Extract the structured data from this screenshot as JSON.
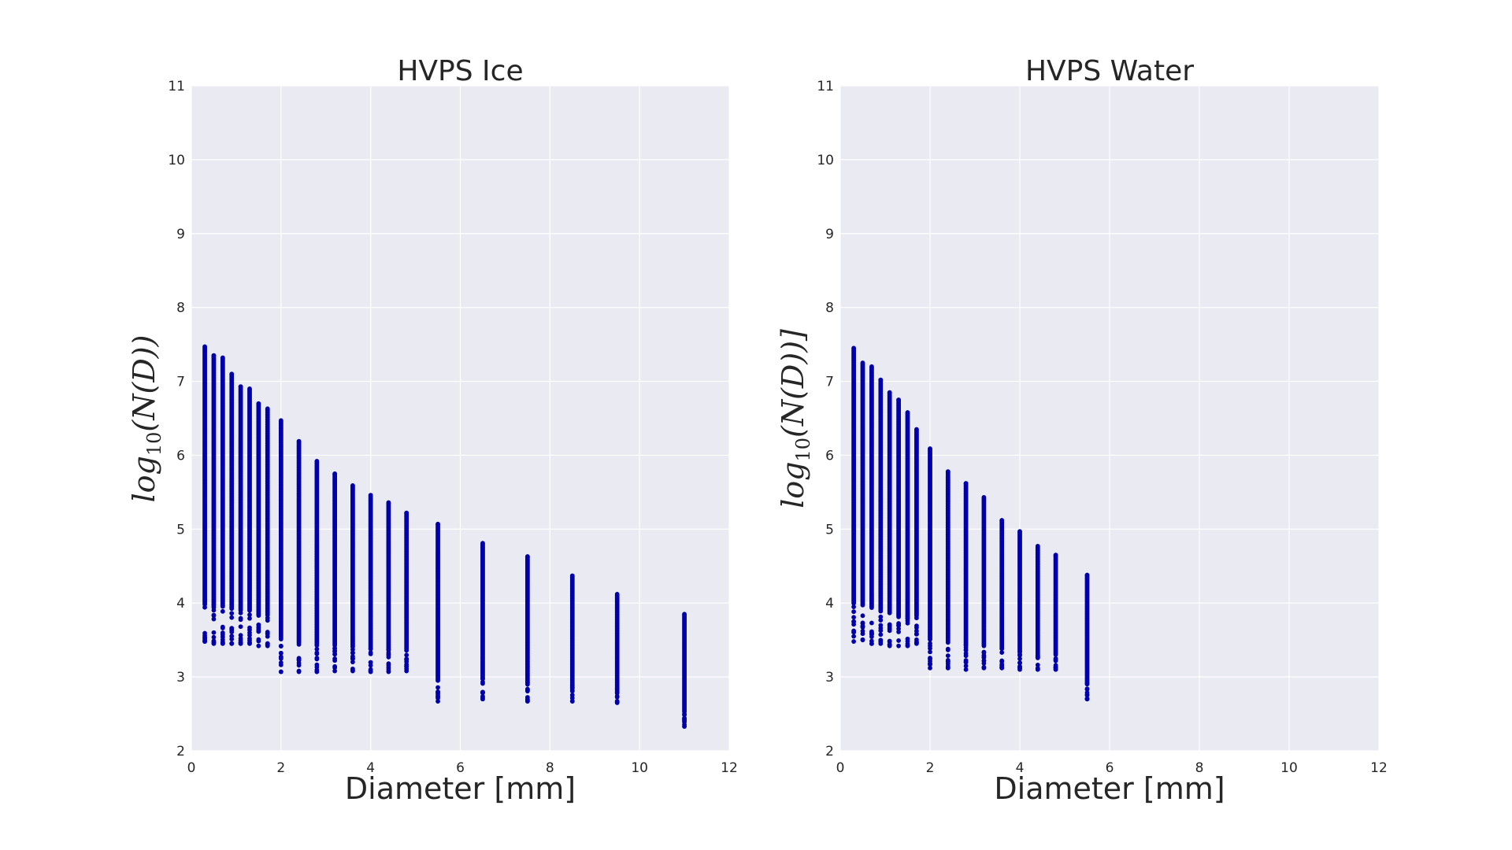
{
  "chart_data": [
    {
      "type": "scatter",
      "title": "HVPS Ice",
      "xlabel": "Diameter [mm]",
      "ylabel": "log10(N(D))",
      "ylabel_parts": {
        "pre": "log",
        "sub": "10",
        "post": "(N(D))"
      },
      "xlim": [
        0,
        12
      ],
      "ylim": [
        2,
        11
      ],
      "xticks": [
        "0",
        "2",
        "4",
        "6",
        "8",
        "10",
        "12"
      ],
      "yticks": [
        "2",
        "3",
        "4",
        "5",
        "6",
        "7",
        "8",
        "9",
        "10",
        "11"
      ],
      "grid": true,
      "color": "#0000aa",
      "columns": [
        {
          "x": 0.3,
          "ymin": 3.48,
          "ymax": 7.47
        },
        {
          "x": 0.5,
          "ymin": 3.45,
          "ymax": 7.35
        },
        {
          "x": 0.7,
          "ymin": 3.45,
          "ymax": 7.32
        },
        {
          "x": 0.9,
          "ymin": 3.45,
          "ymax": 7.1
        },
        {
          "x": 1.1,
          "ymin": 3.45,
          "ymax": 6.93
        },
        {
          "x": 1.3,
          "ymin": 3.45,
          "ymax": 6.9
        },
        {
          "x": 1.5,
          "ymin": 3.42,
          "ymax": 6.7
        },
        {
          "x": 1.7,
          "ymin": 3.42,
          "ymax": 6.63
        },
        {
          "x": 2.0,
          "ymin": 3.07,
          "ymax": 6.47
        },
        {
          "x": 2.4,
          "ymin": 3.07,
          "ymax": 6.19
        },
        {
          "x": 2.8,
          "ymin": 3.07,
          "ymax": 5.92
        },
        {
          "x": 3.2,
          "ymin": 3.08,
          "ymax": 5.75
        },
        {
          "x": 3.6,
          "ymin": 3.08,
          "ymax": 5.59
        },
        {
          "x": 4.0,
          "ymin": 3.07,
          "ymax": 5.46
        },
        {
          "x": 4.4,
          "ymin": 3.07,
          "ymax": 5.36
        },
        {
          "x": 4.8,
          "ymin": 3.08,
          "ymax": 5.22
        },
        {
          "x": 5.5,
          "ymin": 2.67,
          "ymax": 5.07
        },
        {
          "x": 6.5,
          "ymin": 2.7,
          "ymax": 4.81
        },
        {
          "x": 7.5,
          "ymin": 2.67,
          "ymax": 4.63
        },
        {
          "x": 8.5,
          "ymin": 2.67,
          "ymax": 4.37
        },
        {
          "x": 9.5,
          "ymin": 2.65,
          "ymax": 4.12
        },
        {
          "x": 11.0,
          "ymin": 2.33,
          "ymax": 3.85
        }
      ]
    },
    {
      "type": "scatter",
      "title": "HVPS Water",
      "xlabel": "Diameter [mm]",
      "ylabel": "log10(N(D))]",
      "ylabel_parts": {
        "pre": "log",
        "sub": "10",
        "post": "(N(D))]"
      },
      "xlim": [
        0,
        12
      ],
      "ylim": [
        2,
        11
      ],
      "xticks": [
        "0",
        "2",
        "4",
        "6",
        "8",
        "10",
        "12"
      ],
      "yticks": [
        "2",
        "3",
        "4",
        "5",
        "6",
        "7",
        "8",
        "9",
        "10",
        "11"
      ],
      "grid": true,
      "color": "#0000aa",
      "columns": [
        {
          "x": 0.3,
          "ymin": 3.48,
          "ymax": 7.45
        },
        {
          "x": 0.5,
          "ymin": 3.5,
          "ymax": 7.25
        },
        {
          "x": 0.7,
          "ymin": 3.45,
          "ymax": 7.2
        },
        {
          "x": 0.9,
          "ymin": 3.45,
          "ymax": 7.02
        },
        {
          "x": 1.1,
          "ymin": 3.42,
          "ymax": 6.85
        },
        {
          "x": 1.3,
          "ymin": 3.42,
          "ymax": 6.75
        },
        {
          "x": 1.5,
          "ymin": 3.42,
          "ymax": 6.58
        },
        {
          "x": 1.7,
          "ymin": 3.45,
          "ymax": 6.35
        },
        {
          "x": 2.0,
          "ymin": 3.12,
          "ymax": 6.09
        },
        {
          "x": 2.4,
          "ymin": 3.12,
          "ymax": 5.78
        },
        {
          "x": 2.8,
          "ymin": 3.1,
          "ymax": 5.62
        },
        {
          "x": 3.2,
          "ymin": 3.12,
          "ymax": 5.43
        },
        {
          "x": 3.6,
          "ymin": 3.12,
          "ymax": 5.12
        },
        {
          "x": 4.0,
          "ymin": 3.1,
          "ymax": 4.97
        },
        {
          "x": 4.4,
          "ymin": 3.1,
          "ymax": 4.77
        },
        {
          "x": 4.8,
          "ymin": 3.1,
          "ymax": 4.65
        },
        {
          "x": 5.5,
          "ymin": 2.7,
          "ymax": 4.38
        }
      ]
    }
  ]
}
